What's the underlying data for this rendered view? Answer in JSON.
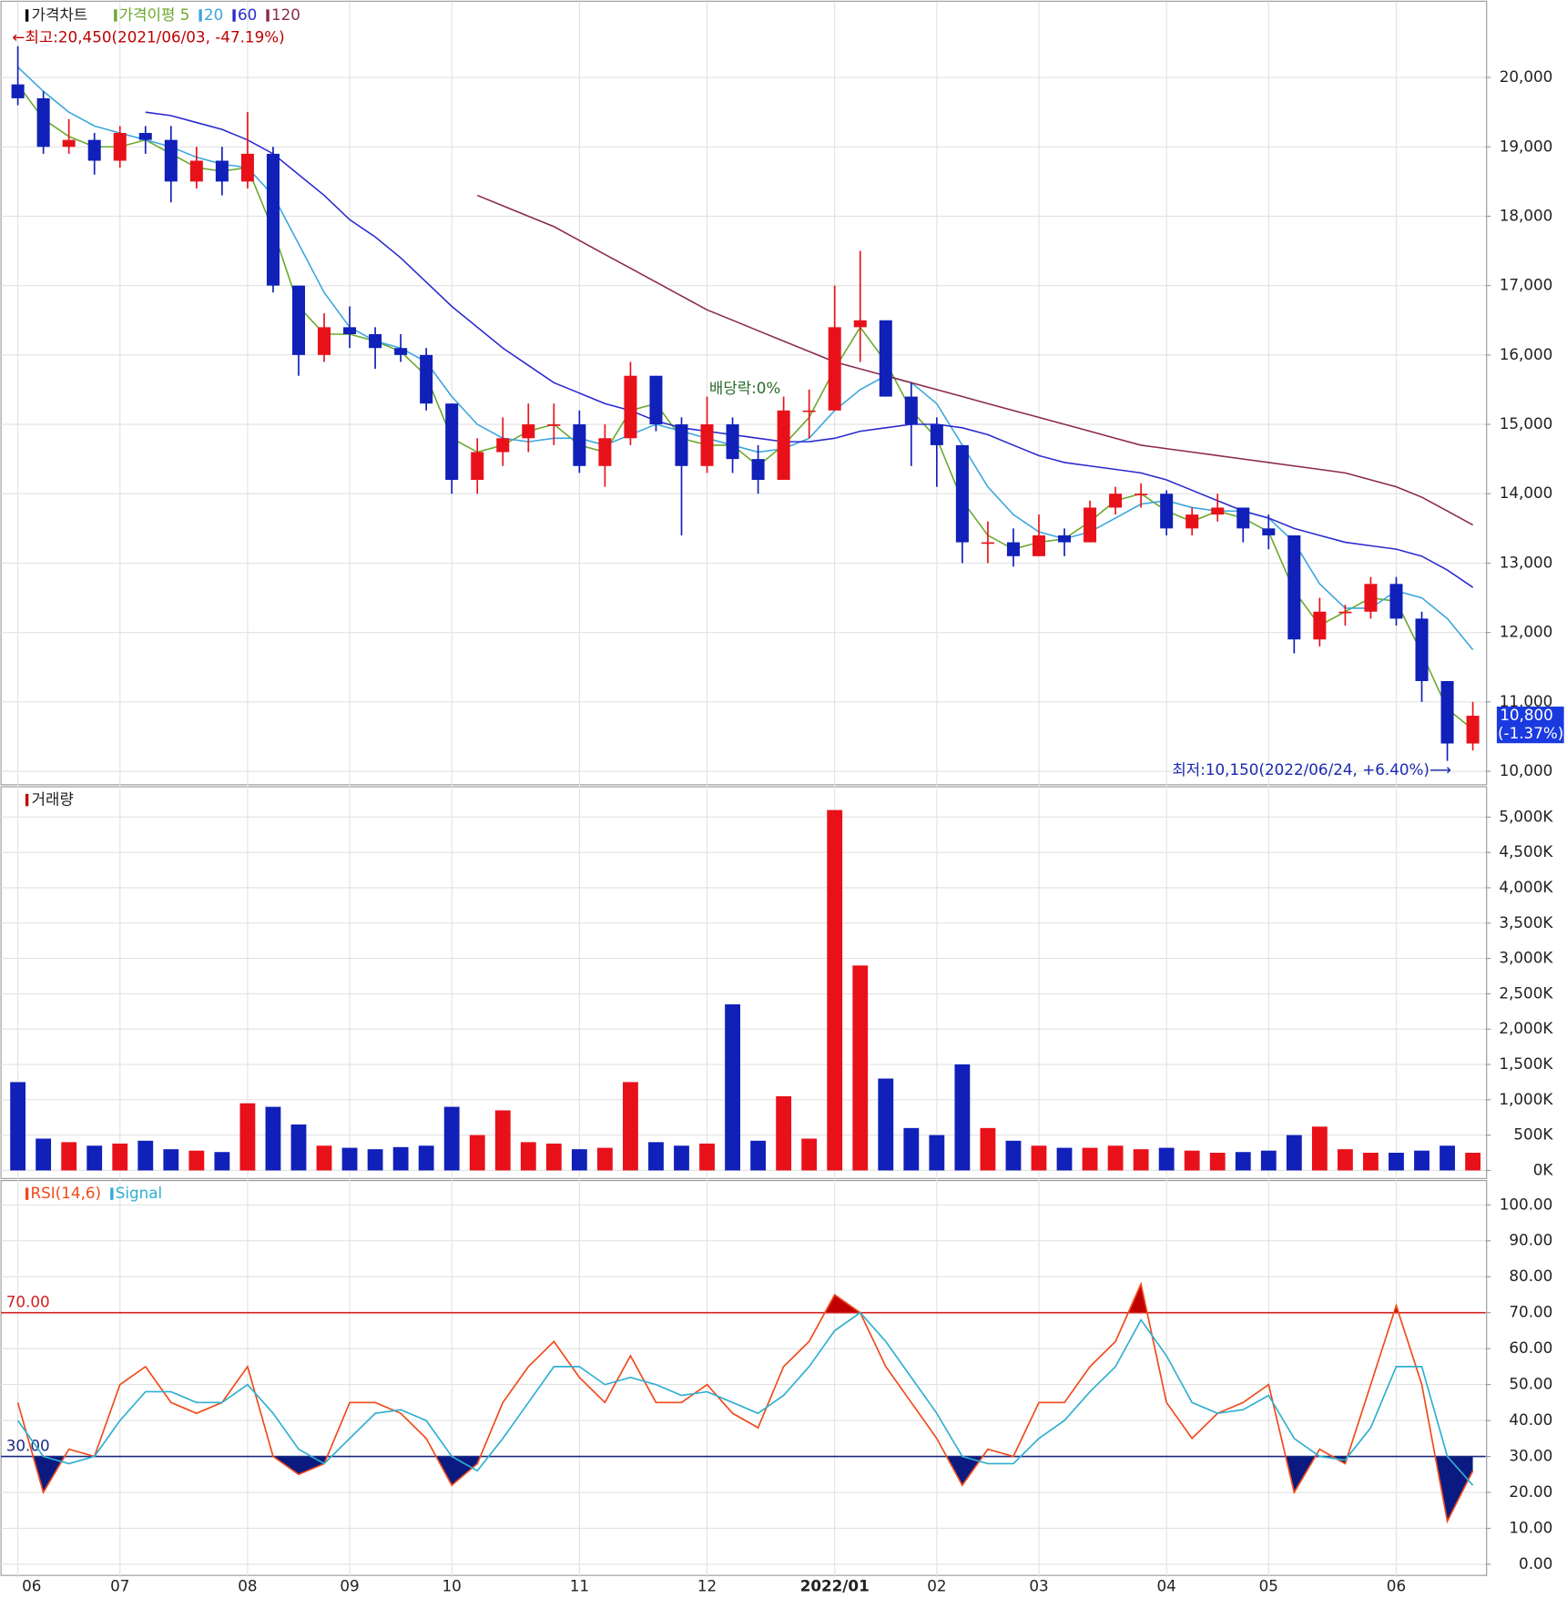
{
  "chart_data": [
    {
      "type": "candlestick",
      "title": "가격차트",
      "open": [
        19900,
        19700,
        19000,
        19100,
        18800,
        19200,
        19100,
        18500,
        18800,
        18500,
        18900,
        17000,
        16000,
        16400,
        16300,
        16100,
        16000,
        15300,
        14200,
        14600,
        14800,
        15000,
        15000,
        14400,
        14800,
        15700,
        15000,
        14400,
        15000,
        14500,
        14200,
        15200,
        15200,
        16400,
        16500,
        15400,
        15000,
        14700,
        13300,
        13300,
        13100,
        13400,
        13300,
        13800,
        14000,
        14000,
        13500,
        13700,
        13800,
        13500,
        13400,
        11900,
        12300,
        12300,
        12700,
        12200,
        11300,
        10400
      ],
      "high": [
        20450,
        19800,
        19400,
        19200,
        19300,
        19300,
        19300,
        19000,
        19000,
        19500,
        19000,
        17000,
        16600,
        16700,
        16400,
        16300,
        16100,
        15300,
        14800,
        15100,
        15300,
        15300,
        15200,
        15000,
        15900,
        15700,
        15100,
        15400,
        15100,
        14700,
        15400,
        15500,
        17000,
        17500,
        16500,
        15600,
        15100,
        14700,
        13600,
        13500,
        13700,
        13500,
        13900,
        14100,
        14150,
        14050,
        13800,
        14000,
        13800,
        13700,
        13400,
        12500,
        12400,
        12800,
        12800,
        12300,
        11300,
        11000
      ],
      "low": [
        19600,
        18900,
        18900,
        18600,
        18700,
        18900,
        18200,
        18400,
        18300,
        18400,
        16900,
        15700,
        15900,
        16100,
        15800,
        15900,
        15200,
        14000,
        14000,
        14400,
        14600,
        14700,
        14300,
        14100,
        14700,
        14900,
        13400,
        14300,
        14300,
        14000,
        14200,
        14800,
        15200,
        15900,
        15400,
        14400,
        14100,
        13000,
        13000,
        12950,
        13100,
        13100,
        13300,
        13700,
        13800,
        13400,
        13400,
        13600,
        13300,
        13200,
        11700,
        11800,
        12100,
        12200,
        12100,
        11000,
        10150,
        10300
      ],
      "close": [
        19700,
        19000,
        19100,
        18800,
        19200,
        19100,
        18500,
        18800,
        18500,
        18900,
        17000,
        16000,
        16400,
        16300,
        16100,
        16000,
        15300,
        14200,
        14600,
        14800,
        15000,
        15000,
        14400,
        14800,
        15700,
        15000,
        14400,
        15000,
        14500,
        14200,
        15200,
        15200,
        16400,
        16500,
        15400,
        15000,
        14700,
        13300,
        13300,
        13100,
        13400,
        13300,
        13800,
        14000,
        14000,
        13500,
        13700,
        13800,
        13500,
        13400,
        11900,
        12300,
        12300,
        12700,
        12200,
        11300,
        10400,
        10800
      ],
      "up_color": "#e8111a",
      "down_color": "#1020b8",
      "series": [
        {
          "name": "가격이평 5",
          "color": "#6aa82a",
          "values": [
            19900,
            19400,
            19150,
            19000,
            19000,
            19100,
            18900,
            18700,
            18650,
            18700,
            17800,
            16700,
            16300,
            16300,
            16200,
            16050,
            15700,
            14800,
            14600,
            14700,
            14900,
            15000,
            14700,
            14600,
            15200,
            15300,
            14800,
            14700,
            14700,
            14400,
            14700,
            15100,
            15800,
            16400,
            15900,
            15200,
            14800,
            13900,
            13400,
            13200,
            13300,
            13350,
            13600,
            13900,
            14000,
            13750,
            13600,
            13750,
            13650,
            13450,
            12600,
            12100,
            12300,
            12500,
            12450,
            11700,
            10900,
            10600
          ]
        },
        {
          "name": "20",
          "color": "#3aa6dd",
          "values": [
            20150,
            19800,
            19500,
            19300,
            19200,
            19100,
            19000,
            18850,
            18750,
            18700,
            18300,
            17600,
            16900,
            16400,
            16200,
            16100,
            15900,
            15400,
            15000,
            14800,
            14750,
            14800,
            14800,
            14700,
            14850,
            15000,
            14900,
            14800,
            14700,
            14600,
            14650,
            14800,
            15200,
            15500,
            15700,
            15600,
            15300,
            14700,
            14100,
            13700,
            13450,
            13350,
            13450,
            13650,
            13850,
            13900,
            13800,
            13750,
            13750,
            13650,
            13300,
            12700,
            12350,
            12350,
            12600,
            12500,
            12200,
            11750
          ]
        },
        {
          "name": "60",
          "color": "#2a2ad0",
          "values": [
            null,
            null,
            null,
            null,
            null,
            19500,
            19450,
            19350,
            19250,
            19100,
            18900,
            18600,
            18300,
            17950,
            17700,
            17400,
            17050,
            16700,
            16400,
            16100,
            15850,
            15600,
            15450,
            15300,
            15200,
            15050,
            14950,
            14900,
            14850,
            14800,
            14750,
            14750,
            14800,
            14900,
            14950,
            15000,
            15000,
            14950,
            14850,
            14700,
            14550,
            14450,
            14400,
            14350,
            14300,
            14200,
            14050,
            13900,
            13750,
            13650,
            13500,
            13400,
            13300,
            13250,
            13200,
            13100,
            12900,
            12650
          ]
        },
        {
          "name": "120",
          "color": "#8b2a4a",
          "values": [
            null,
            null,
            null,
            null,
            null,
            null,
            null,
            null,
            null,
            null,
            null,
            null,
            null,
            null,
            null,
            null,
            null,
            null,
            18300,
            18150,
            18000,
            17850,
            17650,
            17450,
            17250,
            17050,
            16850,
            16650,
            16500,
            16350,
            16200,
            16050,
            15900,
            15800,
            15700,
            15600,
            15500,
            15400,
            15300,
            15200,
            15100,
            15000,
            14900,
            14800,
            14700,
            14650,
            14600,
            14550,
            14500,
            14450,
            14400,
            14350,
            14300,
            14200,
            14100,
            13950,
            13750,
            13550
          ]
        }
      ],
      "ylim": [
        9820,
        21040
      ],
      "yticks": [
        {
          "value": 10000,
          "label": "10,000"
        },
        {
          "value": 11000,
          "label": "11,000"
        },
        {
          "value": 12000,
          "label": "12,000"
        },
        {
          "value": 13000,
          "label": "13,000"
        },
        {
          "value": 14000,
          "label": "14,000"
        },
        {
          "value": 15000,
          "label": "15,000"
        },
        {
          "value": 16000,
          "label": "16,000"
        },
        {
          "value": 17000,
          "label": "17,000"
        },
        {
          "value": 18000,
          "label": "18,000"
        },
        {
          "value": 19000,
          "label": "19,000"
        },
        {
          "value": 20000,
          "label": "20,000"
        }
      ],
      "grid": true,
      "annotations": {
        "high": "←최고:20,450(2021/06/03, -47.19%)",
        "low": "최저:10,150(2022/06/24, +6.40%)⟶",
        "dividend": "배당락:0%"
      },
      "last_price": {
        "value": 10800,
        "label": "10,800"
      },
      "change": "(-1.37%)"
    },
    {
      "type": "bar",
      "title": "거래량",
      "values": [
        1250000,
        450000,
        400000,
        350000,
        380000,
        420000,
        300000,
        280000,
        260000,
        950000,
        900000,
        650000,
        350000,
        320000,
        300000,
        330000,
        350000,
        900000,
        500000,
        850000,
        400000,
        380000,
        300000,
        320000,
        1250000,
        400000,
        350000,
        380000,
        2350000,
        420000,
        1050000,
        450000,
        5100000,
        2900000,
        1300000,
        600000,
        500000,
        1500000,
        600000,
        420000,
        350000,
        320000,
        320000,
        350000,
        300000,
        320000,
        280000,
        250000,
        260000,
        280000,
        500000,
        620000,
        300000,
        250000,
        250000,
        280000,
        350000,
        250000
      ],
      "ylim": [
        -115000,
        5400000
      ],
      "yticks": [
        {
          "value": 0,
          "label": "0K"
        },
        {
          "value": 500000,
          "label": "500K"
        },
        {
          "value": 1000000,
          "label": "1,000K"
        },
        {
          "value": 1500000,
          "label": "1,500K"
        },
        {
          "value": 2000000,
          "label": "2,000K"
        },
        {
          "value": 2500000,
          "label": "2,500K"
        },
        {
          "value": 3000000,
          "label": "3,000K"
        },
        {
          "value": 3500000,
          "label": "3,500K"
        },
        {
          "value": 4000000,
          "label": "4,000K"
        },
        {
          "value": 4500000,
          "label": "4,500K"
        },
        {
          "value": 5000000,
          "label": "5,000K"
        }
      ],
      "grid": true
    },
    {
      "type": "line",
      "categories": [
        "06",
        null,
        null,
        null,
        "07",
        null,
        null,
        null,
        null,
        "08",
        null,
        null,
        null,
        "09",
        null,
        null,
        null,
        "10",
        null,
        null,
        null,
        null,
        "11",
        null,
        null,
        null,
        null,
        "12",
        null,
        null,
        null,
        null,
        "2022/01",
        null,
        null,
        null,
        "02",
        null,
        null,
        null,
        "03",
        null,
        null,
        null,
        null,
        "04",
        null,
        null,
        null,
        "05",
        null,
        null,
        null,
        null,
        "06",
        null,
        null,
        null
      ],
      "series": [
        {
          "name": "RSI(14,6)",
          "color": "#f04a1a",
          "values": [
            45,
            20,
            32,
            30,
            50,
            55,
            45,
            42,
            45,
            55,
            30,
            25,
            28,
            45,
            45,
            42,
            35,
            22,
            28,
            45,
            55,
            62,
            52,
            45,
            58,
            45,
            45,
            50,
            42,
            38,
            55,
            62,
            75,
            70,
            55,
            45,
            35,
            22,
            32,
            30,
            45,
            45,
            55,
            62,
            78,
            45,
            35,
            42,
            45,
            50,
            20,
            32,
            28,
            50,
            72,
            50,
            12,
            26
          ]
        },
        {
          "name": "Signal",
          "color": "#30b0d0",
          "values": [
            40,
            30,
            28,
            30,
            40,
            48,
            48,
            45,
            45,
            50,
            42,
            32,
            28,
            35,
            42,
            43,
            40,
            30,
            26,
            35,
            45,
            55,
            55,
            50,
            52,
            50,
            47,
            48,
            45,
            42,
            47,
            55,
            65,
            70,
            62,
            52,
            42,
            30,
            28,
            28,
            35,
            40,
            48,
            55,
            68,
            58,
            45,
            42,
            43,
            47,
            35,
            30,
            29,
            38,
            55,
            55,
            30,
            22
          ]
        }
      ],
      "levels": [
        {
          "value": 70,
          "label": "70.00",
          "color": "#d02020",
          "fill": "#c00000"
        },
        {
          "value": 30,
          "label": "30.00",
          "color": "#1a2a80",
          "fill": "#0a1a80"
        }
      ],
      "ylim": [
        -3.1,
        106.2
      ],
      "yticks": [
        {
          "value": 0,
          "label": "0.00"
        },
        {
          "value": 10,
          "label": "10.00"
        },
        {
          "value": 20,
          "label": "20.00"
        },
        {
          "value": 30,
          "label": "30.00"
        },
        {
          "value": 40,
          "label": "40.00"
        },
        {
          "value": 50,
          "label": "50.00"
        },
        {
          "value": 60,
          "label": "60.00"
        },
        {
          "value": 70,
          "label": "70.00"
        },
        {
          "value": 80,
          "label": "80.00"
        },
        {
          "value": 90,
          "label": "90.00"
        },
        {
          "value": 100,
          "label": "100.00"
        }
      ],
      "grid": true
    }
  ]
}
